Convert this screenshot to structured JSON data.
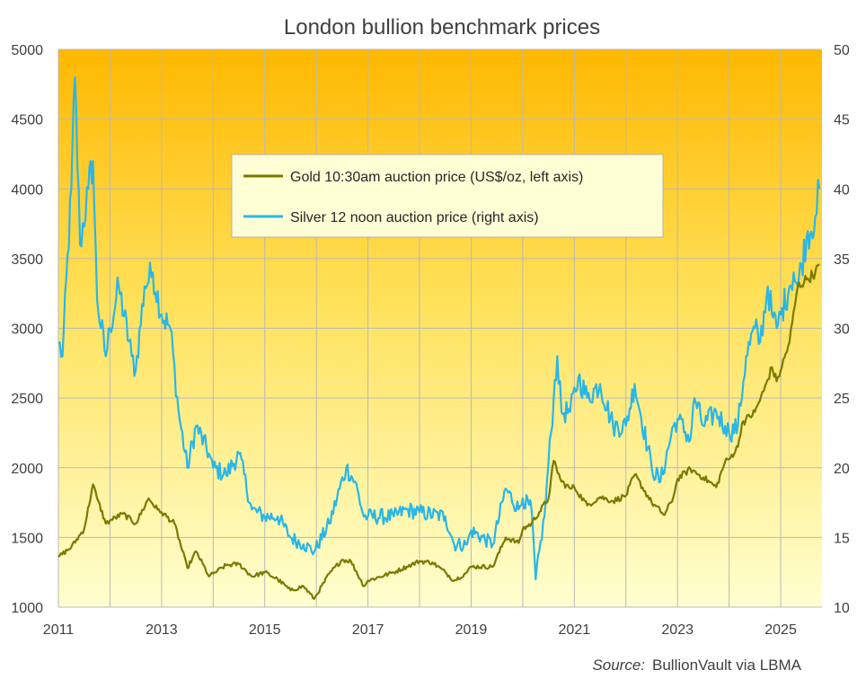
{
  "chart_data": {
    "type": "line",
    "title": "London bullion benchmark prices",
    "x_ticks": [
      "2011",
      "2013",
      "2015",
      "2017",
      "2019",
      "2021",
      "2023",
      "2025"
    ],
    "x_range": [
      2011.0,
      2025.8
    ],
    "y_left": {
      "range": [
        1000,
        5000
      ],
      "ticks": [
        "1000",
        "1500",
        "2000",
        "2500",
        "3000",
        "3500",
        "4000",
        "4500",
        "5000"
      ]
    },
    "y_right": {
      "range": [
        10,
        50
      ],
      "ticks": [
        "10",
        "15",
        "20",
        "25",
        "30",
        "35",
        "40",
        "45",
        "50"
      ]
    },
    "grid": true,
    "legend_position": "top-center",
    "series": [
      {
        "name": "Gold 10:30am auction price (US$/oz, left axis)",
        "axis": "left",
        "color": "#7a7a00",
        "x": [
          2011.0,
          2011.25,
          2011.5,
          2011.67,
          2011.75,
          2011.92,
          2012.0,
          2012.25,
          2012.5,
          2012.75,
          2012.92,
          2013.0,
          2013.25,
          2013.5,
          2013.67,
          2013.92,
          2014.0,
          2014.25,
          2014.5,
          2014.75,
          2015.0,
          2015.25,
          2015.5,
          2015.75,
          2015.96,
          2016.25,
          2016.5,
          2016.67,
          2016.92,
          2017.0,
          2017.5,
          2017.75,
          2018.0,
          2018.25,
          2018.5,
          2018.67,
          2018.92,
          2019.0,
          2019.42,
          2019.67,
          2019.92,
          2020.0,
          2020.17,
          2020.5,
          2020.6,
          2020.75,
          2020.92,
          2021.0,
          2021.25,
          2021.5,
          2021.75,
          2022.0,
          2022.17,
          2022.5,
          2022.75,
          2022.92,
          2023.0,
          2023.25,
          2023.5,
          2023.75,
          2023.92,
          2024.0,
          2024.17,
          2024.25,
          2024.5,
          2024.67,
          2024.83,
          2024.92,
          2025.0,
          2025.17,
          2025.33,
          2025.5,
          2025.67,
          2025.75
        ],
        "values": [
          1360,
          1430,
          1560,
          1880,
          1780,
          1600,
          1620,
          1670,
          1600,
          1780,
          1700,
          1680,
          1600,
          1280,
          1400,
          1220,
          1240,
          1300,
          1310,
          1220,
          1250,
          1200,
          1120,
          1150,
          1060,
          1240,
          1340,
          1330,
          1150,
          1190,
          1250,
          1290,
          1330,
          1320,
          1250,
          1190,
          1250,
          1290,
          1290,
          1500,
          1460,
          1560,
          1600,
          1780,
          2050,
          1900,
          1850,
          1860,
          1730,
          1790,
          1760,
          1800,
          1950,
          1750,
          1660,
          1790,
          1920,
          1990,
          1930,
          1860,
          2040,
          2060,
          2150,
          2320,
          2400,
          2550,
          2720,
          2620,
          2700,
          2900,
          3300,
          3350,
          3400,
          3460
        ]
      },
      {
        "name": "Silver 12 noon auction price (right axis)",
        "axis": "right",
        "color": "#29b6e8",
        "x": [
          2011.0,
          2011.08,
          2011.25,
          2011.32,
          2011.42,
          2011.58,
          2011.67,
          2011.75,
          2011.92,
          2012.0,
          2012.17,
          2012.42,
          2012.5,
          2012.67,
          2012.83,
          2013.0,
          2013.17,
          2013.33,
          2013.5,
          2013.67,
          2013.92,
          2014.0,
          2014.25,
          2014.5,
          2014.75,
          2015.0,
          2015.25,
          2015.5,
          2015.75,
          2015.96,
          2016.25,
          2016.58,
          2016.75,
          2016.92,
          2017.0,
          2017.5,
          2017.75,
          2018.0,
          2018.5,
          2018.67,
          2018.92,
          2019.0,
          2019.42,
          2019.67,
          2019.92,
          2020.0,
          2020.17,
          2020.25,
          2020.42,
          2020.6,
          2020.67,
          2020.75,
          2020.92,
          2021.08,
          2021.25,
          2021.5,
          2021.75,
          2022.0,
          2022.17,
          2022.5,
          2022.67,
          2022.92,
          2023.0,
          2023.25,
          2023.33,
          2023.5,
          2023.75,
          2023.92,
          2024.0,
          2024.17,
          2024.33,
          2024.5,
          2024.6,
          2024.75,
          2024.83,
          2024.92,
          2025.0,
          2025.17,
          2025.25,
          2025.33,
          2025.5,
          2025.67,
          2025.75
        ],
        "values": [
          29,
          28,
          40,
          48,
          36,
          40,
          42,
          32,
          28,
          30,
          33,
          28,
          27,
          33,
          34,
          31,
          30,
          24,
          20,
          23,
          21,
          20,
          19.5,
          21,
          17,
          16.5,
          16.5,
          15,
          14.5,
          14,
          16,
          20,
          19,
          16.5,
          16.5,
          16.5,
          17,
          16.8,
          16.5,
          14.5,
          14.5,
          15.5,
          14.5,
          18.5,
          17,
          17.8,
          17,
          12,
          16.5,
          25,
          28,
          24,
          24,
          26.5,
          25,
          26,
          23,
          23,
          26,
          20,
          19,
          23,
          23.5,
          22,
          25,
          23,
          24,
          23,
          22.5,
          23,
          28,
          30,
          29,
          33,
          31,
          30,
          31,
          33,
          34,
          33,
          36.5,
          38,
          40
        ]
      }
    ],
    "source_prefix": "Source:",
    "source_name": "BullionVault via LBMA"
  }
}
